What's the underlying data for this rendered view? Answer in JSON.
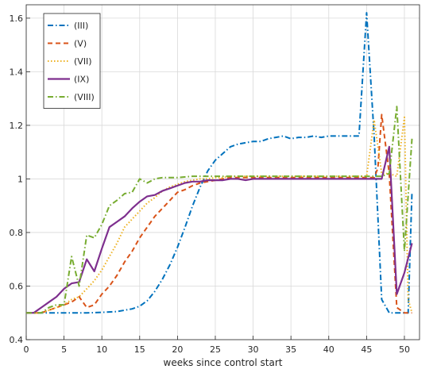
{
  "chart_data": {
    "type": "line",
    "xlabel": "weeks since control start",
    "ylabel": "",
    "xlim": [
      0,
      52
    ],
    "ylim": [
      0.4,
      1.65
    ],
    "xticks": [
      0,
      5,
      10,
      15,
      20,
      25,
      30,
      35,
      40,
      45,
      50
    ],
    "yticks": [
      0.4,
      0.6,
      0.8,
      1.0,
      1.2,
      1.4,
      1.6
    ],
    "ytick_labels": [
      "0.4",
      "0.6",
      "0.8",
      "1",
      "1.2",
      "1.4",
      "1.6"
    ],
    "grid": true,
    "legend_position": "top-left",
    "series": [
      {
        "name": "(III)",
        "color": "#0072BD",
        "style": "dashdot",
        "x": [
          0,
          2,
          4,
          6,
          8,
          10,
          12,
          14,
          15,
          16,
          17,
          18,
          19,
          20,
          21,
          22,
          23,
          24,
          25,
          26,
          27,
          28,
          29,
          30,
          31,
          32,
          33,
          34,
          35,
          36,
          37,
          38,
          39,
          40,
          41,
          42,
          43,
          44,
          45,
          46,
          47,
          48,
          49,
          50,
          50.5,
          51
        ],
        "y": [
          0.5,
          0.5,
          0.5,
          0.5,
          0.5,
          0.502,
          0.505,
          0.515,
          0.525,
          0.545,
          0.58,
          0.625,
          0.68,
          0.745,
          0.82,
          0.9,
          0.97,
          1.03,
          1.07,
          1.095,
          1.12,
          1.13,
          1.135,
          1.14,
          1.14,
          1.15,
          1.155,
          1.16,
          1.15,
          1.155,
          1.155,
          1.16,
          1.155,
          1.16,
          1.16,
          1.16,
          1.16,
          1.16,
          1.62,
          1.16,
          0.55,
          0.5,
          0.5,
          0.5,
          0.5,
          0.95
        ]
      },
      {
        "name": "(V)",
        "color": "#D95319",
        "style": "dashed",
        "x": [
          0,
          2,
          4,
          6,
          7,
          8,
          9,
          10,
          11,
          12,
          13,
          14,
          15,
          16,
          17,
          18,
          19,
          20,
          21,
          22,
          23,
          24,
          25,
          26,
          27,
          28,
          30,
          35,
          40,
          45,
          46,
          46.5,
          47,
          48,
          49,
          50,
          51
        ],
        "y": [
          0.5,
          0.5,
          0.52,
          0.54,
          0.56,
          0.52,
          0.53,
          0.57,
          0.6,
          0.64,
          0.69,
          0.73,
          0.78,
          0.82,
          0.86,
          0.89,
          0.92,
          0.95,
          0.96,
          0.975,
          0.985,
          0.99,
          0.995,
          1.0,
          1.005,
          1.005,
          1.005,
          1.005,
          1.005,
          1.005,
          1.005,
          1.04,
          1.24,
          1.02,
          0.52,
          0.5,
          0.5
        ]
      },
      {
        "name": "(VII)",
        "color": "#EDB120",
        "style": "dotted",
        "x": [
          0,
          2,
          4,
          5,
          6,
          7,
          8,
          9,
          10,
          11,
          12,
          13,
          14,
          15,
          16,
          17,
          18,
          19,
          20,
          21,
          22,
          23,
          24,
          25,
          26,
          27,
          28,
          30,
          35,
          40,
          45,
          46,
          47,
          48,
          49,
          50,
          50.5,
          51
        ],
        "y": [
          0.5,
          0.5,
          0.52,
          0.53,
          0.55,
          0.56,
          0.59,
          0.62,
          0.66,
          0.71,
          0.76,
          0.82,
          0.85,
          0.88,
          0.91,
          0.93,
          0.955,
          0.97,
          0.98,
          0.99,
          0.995,
          1.0,
          1.0,
          1.005,
          1.005,
          1.01,
          1.01,
          1.01,
          1.01,
          1.01,
          1.01,
          1.22,
          1.02,
          1.02,
          1.01,
          1.23,
          0.55,
          0.5
        ]
      },
      {
        "name": "(IX)",
        "color": "#7E2F8E",
        "style": "solid",
        "x": [
          0,
          1,
          2,
          3,
          4,
          5,
          6,
          7,
          8,
          9,
          10,
          11,
          12,
          13,
          14,
          15,
          16,
          17,
          18,
          19,
          20,
          21,
          22,
          23,
          24,
          25,
          26,
          27,
          28,
          29,
          30,
          35,
          40,
          45,
          46,
          47,
          48,
          49,
          50,
          51
        ],
        "y": [
          0.5,
          0.5,
          0.52,
          0.54,
          0.56,
          0.59,
          0.61,
          0.615,
          0.7,
          0.655,
          0.74,
          0.82,
          0.84,
          0.86,
          0.89,
          0.915,
          0.935,
          0.94,
          0.955,
          0.965,
          0.975,
          0.985,
          0.99,
          0.99,
          0.995,
          0.995,
          0.995,
          1.0,
          1.0,
          0.995,
          1.0,
          1.0,
          1.0,
          1.0,
          1.0,
          1.0,
          1.12,
          0.57,
          0.65,
          0.76
        ]
      },
      {
        "name": "(VIII)",
        "color": "#77AC30",
        "style": "dashdot",
        "x": [
          0,
          1,
          2,
          3,
          4,
          5,
          6,
          7,
          8,
          9,
          10,
          11,
          12,
          13,
          14,
          15,
          16,
          17,
          18,
          19,
          20,
          22,
          24,
          26,
          28,
          30,
          35,
          40,
          45,
          46,
          47,
          48,
          49,
          50,
          51
        ],
        "y": [
          0.5,
          0.5,
          0.5,
          0.52,
          0.53,
          0.53,
          0.71,
          0.6,
          0.79,
          0.78,
          0.83,
          0.9,
          0.92,
          0.945,
          0.95,
          1.0,
          0.985,
          1.0,
          1.005,
          1.005,
          1.005,
          1.01,
          1.01,
          1.01,
          1.01,
          1.01,
          1.01,
          1.01,
          1.01,
          1.01,
          1.01,
          1.02,
          1.27,
          0.73,
          1.15
        ]
      }
    ]
  }
}
